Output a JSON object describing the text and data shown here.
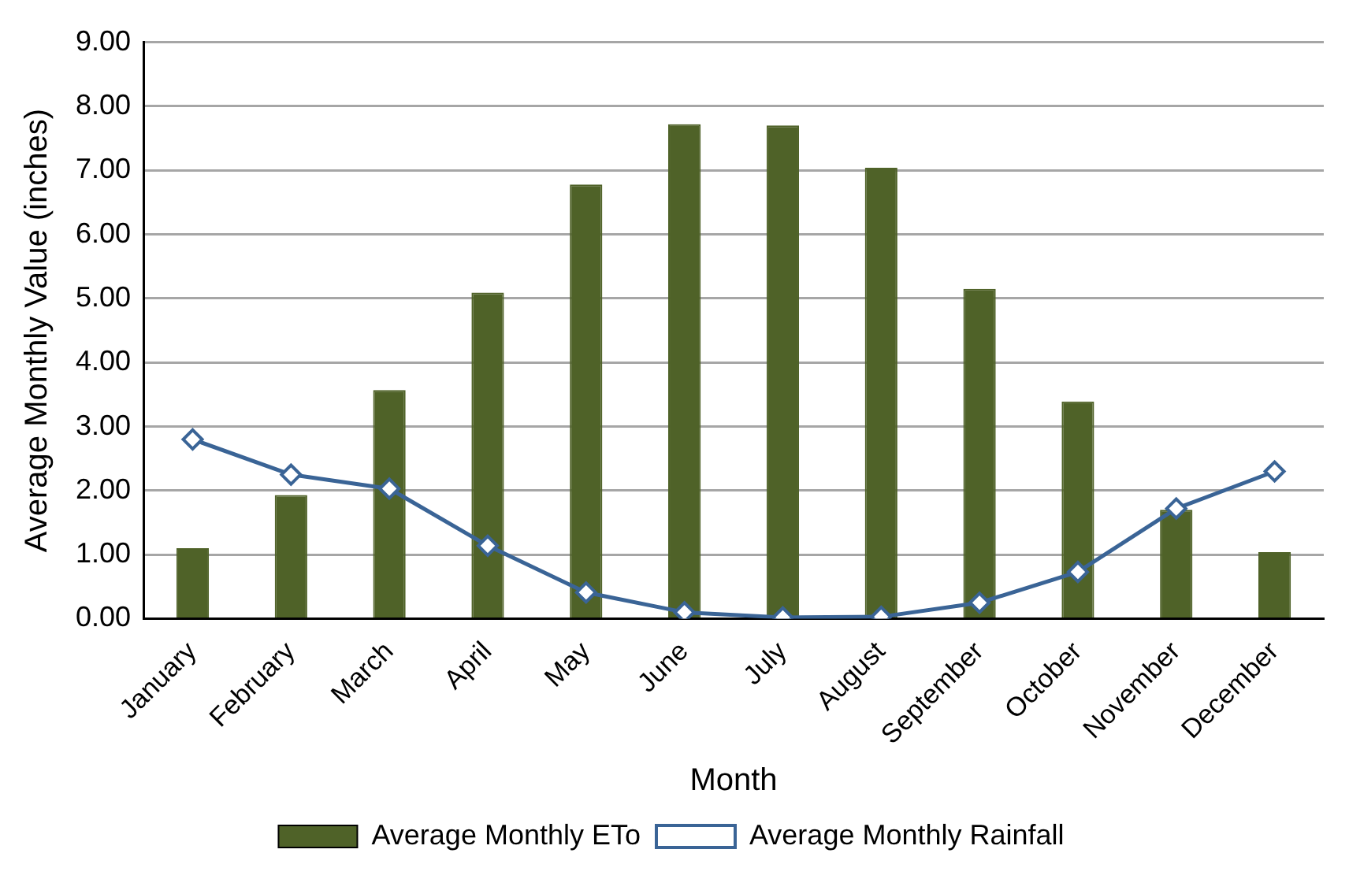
{
  "chart_data": {
    "type": "bar",
    "xlabel": "Month",
    "ylabel": "Average Monthly Value (inches)",
    "categories": [
      "January",
      "February",
      "March",
      "April",
      "May",
      "June",
      "July",
      "August",
      "September",
      "October",
      "November",
      "December"
    ],
    "series": [
      {
        "name": "Average Monthly ETo",
        "color": "#4f6228",
        "values": [
          1.1,
          1.93,
          3.57,
          5.09,
          6.78,
          7.72,
          7.7,
          7.04,
          5.15,
          3.39,
          1.7,
          1.04
        ]
      },
      {
        "name": "Average Monthly Rainfall",
        "type": "line",
        "color": "#3a6496",
        "marker": "diamond",
        "values": [
          2.8,
          2.25,
          2.03,
          1.14,
          0.41,
          0.1,
          0.02,
          0.03,
          0.25,
          0.73,
          1.72,
          2.3
        ]
      }
    ],
    "ylim": [
      0,
      9
    ],
    "yticks": [
      {
        "value": 0,
        "label": "0.00"
      },
      {
        "value": 1,
        "label": "1.00"
      },
      {
        "value": 2,
        "label": "2.00"
      },
      {
        "value": 3,
        "label": "3.00"
      },
      {
        "value": 4,
        "label": "4.00"
      },
      {
        "value": 5,
        "label": "5.00"
      },
      {
        "value": 6,
        "label": "6.00"
      },
      {
        "value": 7,
        "label": "7.00"
      },
      {
        "value": 8,
        "label": "8.00"
      },
      {
        "value": 9,
        "label": "9.00"
      }
    ],
    "grid": "y",
    "legend": "bottom"
  }
}
